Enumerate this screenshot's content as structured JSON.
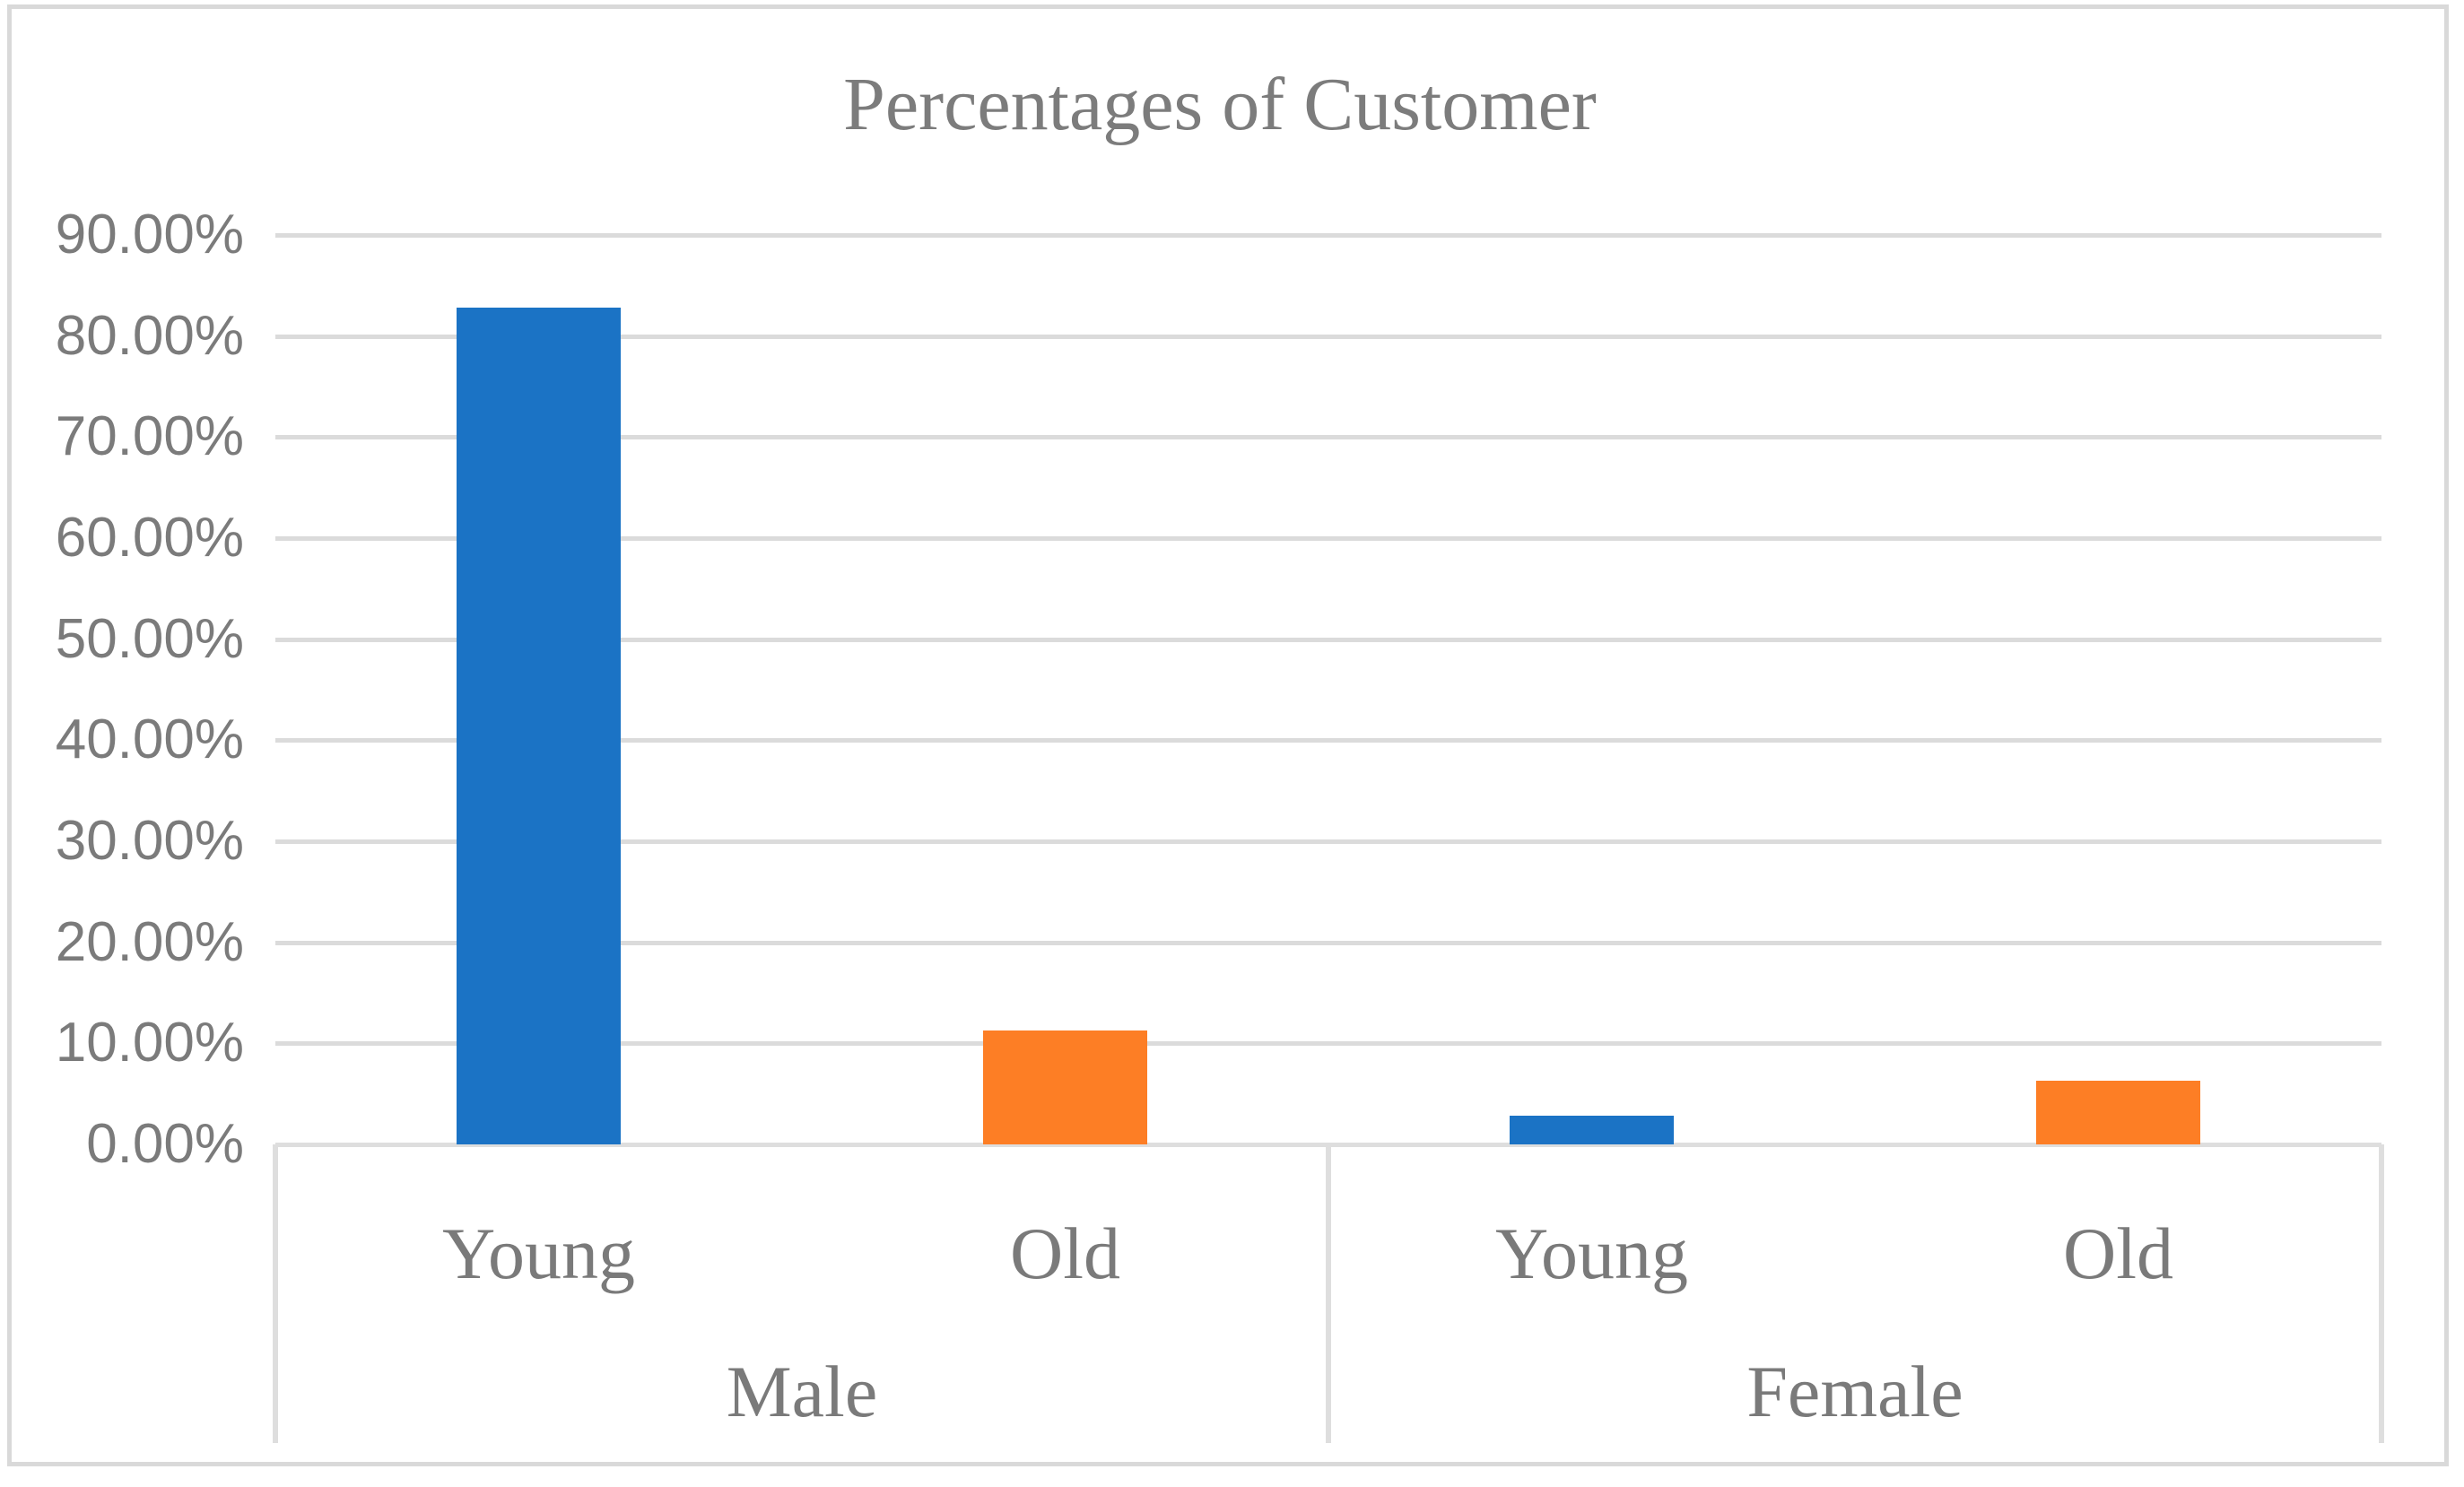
{
  "chart_data": {
    "type": "bar",
    "title": "Percentages of Customer",
    "y_axis": {
      "min": 0,
      "max": 90,
      "step": 10,
      "format": "percent",
      "grid": true,
      "tick_labels": [
        "0.00%",
        "10.00%",
        "20.00%",
        "30.00%",
        "40.00%",
        "50.00%",
        "60.00%",
        "70.00%",
        "80.00%",
        "90.00%"
      ]
    },
    "x_axis": {
      "groups": [
        {
          "label": "Male",
          "categories": [
            "Young",
            "Old"
          ]
        },
        {
          "label": "Female",
          "categories": [
            "Young",
            "Old"
          ]
        }
      ]
    },
    "bars": [
      {
        "group": "Male",
        "category": "Young",
        "value": 82.8,
        "color_key": "young"
      },
      {
        "group": "Male",
        "category": "Old",
        "value": 11.3,
        "color_key": "old"
      },
      {
        "group": "Female",
        "category": "Young",
        "value": 2.8,
        "color_key": "young"
      },
      {
        "group": "Female",
        "category": "Old",
        "value": 6.3,
        "color_key": "old"
      }
    ],
    "legend": "none"
  },
  "colors": {
    "young_series": "#1B73C5",
    "old_series": "#FD7E25",
    "grid_line": "#DBDBDB",
    "axis_table_line": "#DEDEDE",
    "outer_border": "#D9D9D9",
    "text_gray": "#7B7B7B",
    "background": "#FFFFFF"
  }
}
